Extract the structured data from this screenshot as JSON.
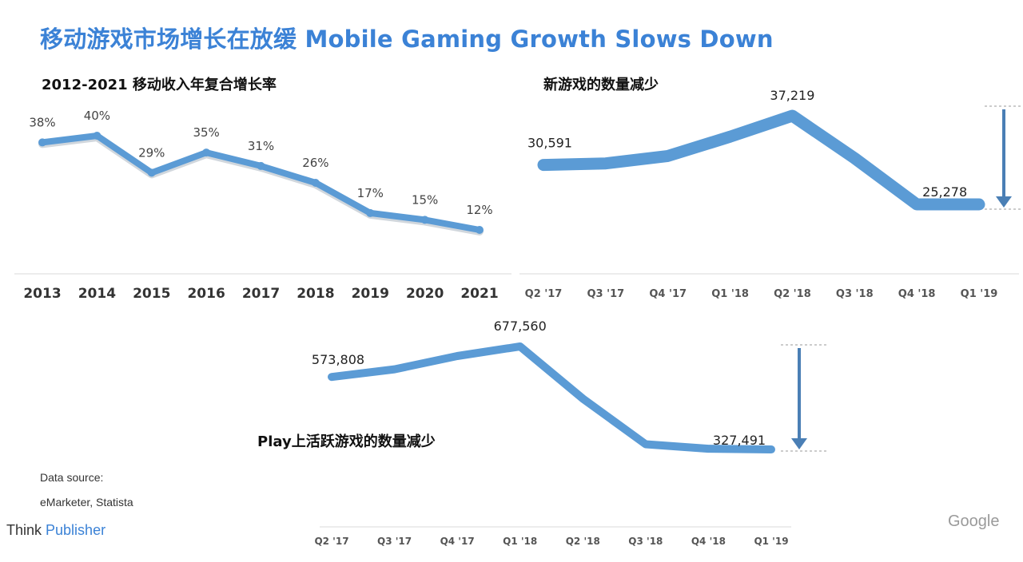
{
  "header": {
    "title": "移动游戏市场增长在放缓 Mobile Gaming Growth Slows Down"
  },
  "footer": {
    "source_label": "Data source:",
    "source_value": "eMarketer, Statista",
    "brand_prefix": "Think",
    "brand_name": "Publisher",
    "google": "Google"
  },
  "colors": {
    "line": "#5b9bd5",
    "title": "#3b82d6"
  },
  "chart_data": [
    {
      "type": "line",
      "title": "2012-2021 移动收入年复合增长率",
      "categories": [
        "2013",
        "2014",
        "2015",
        "2016",
        "2017",
        "2018",
        "2019",
        "2020",
        "2021"
      ],
      "values": [
        38,
        40,
        29,
        35,
        31,
        26,
        17,
        15,
        12
      ],
      "data_labels": [
        "38%",
        "40%",
        "29%",
        "35%",
        "31%",
        "26%",
        "17%",
        "15%",
        "12%"
      ],
      "ylim": [
        0,
        45
      ],
      "grid": false
    },
    {
      "type": "line",
      "title": "新游戏的数量减少",
      "categories": [
        "Q2 '17",
        "Q3 '17",
        "Q4 '17",
        "Q1 '18",
        "Q2 '18",
        "Q3 '18",
        "Q4 '18",
        "Q1 '19"
      ],
      "values": [
        30591,
        30800,
        31800,
        34400,
        37219,
        31500,
        25278,
        25278
      ],
      "data_labels": [
        {
          "index": 0,
          "text": "30,591"
        },
        {
          "index": 4,
          "text": "37,219"
        },
        {
          "index": 6,
          "text": "25,278"
        }
      ],
      "grid": false
    },
    {
      "type": "line",
      "title": "Play上活跃游戏的数量减少",
      "categories": [
        "Q2 '17",
        "Q3 '17",
        "Q4 '17",
        "Q1 '18",
        "Q2 '18",
        "Q3 '18",
        "Q4 '18",
        "Q1 '19"
      ],
      "values": [
        573808,
        600000,
        645000,
        677560,
        500000,
        345000,
        330000,
        327491
      ],
      "data_labels": [
        {
          "index": 0,
          "text": "573,808"
        },
        {
          "index": 3,
          "text": "677,560"
        },
        {
          "index": 7,
          "text": "327,491"
        }
      ],
      "grid": false
    }
  ]
}
